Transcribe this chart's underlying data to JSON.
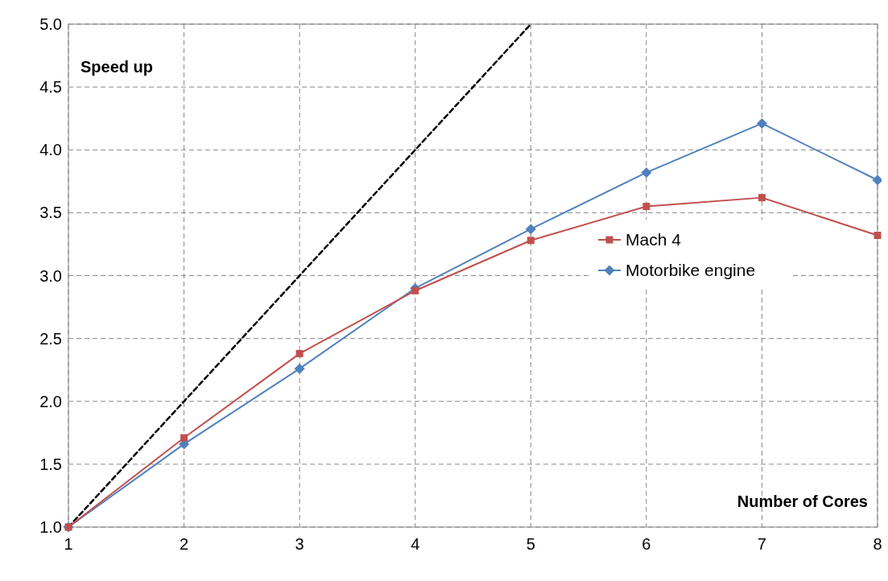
{
  "chart_data": {
    "type": "line",
    "xlabel": "Number of Cores",
    "ylabel": "Speed up",
    "x": [
      1,
      2,
      3,
      4,
      5,
      6,
      7,
      8
    ],
    "series": [
      {
        "name": "Mach 4",
        "color": "#c0504d",
        "marker": "square",
        "values": [
          1.0,
          1.71,
          2.38,
          2.88,
          3.28,
          3.55,
          3.62,
          3.32
        ]
      },
      {
        "name": "Motorbike engine",
        "color": "#4f81bd",
        "marker": "diamond",
        "values": [
          1.0,
          1.66,
          2.26,
          2.9,
          3.37,
          3.82,
          4.21,
          3.76
        ]
      },
      {
        "color": "#000000",
        "marker": "none",
        "line_style": "dashed",
        "x": [
          1,
          2,
          3,
          4,
          5
        ],
        "values": [
          1,
          2,
          3,
          4,
          5
        ]
      }
    ],
    "xlim": [
      1,
      8
    ],
    "xticks": [
      1,
      2,
      3,
      4,
      5,
      6,
      7,
      8
    ],
    "ylim": [
      1.0,
      5.0
    ],
    "yticks": [
      {
        "value": 1,
        "label": "1.0"
      },
      {
        "value": 1.5,
        "label": "1.5"
      },
      {
        "value": 2,
        "label": "2.0"
      },
      {
        "value": 2.5,
        "label": "2.5"
      },
      {
        "value": 3,
        "label": "3.0"
      },
      {
        "value": 3.5,
        "label": "3.5"
      },
      {
        "value": 4,
        "label": "4.0"
      },
      {
        "value": 4.5,
        "label": "4.5"
      },
      {
        "value": 5,
        "label": "5.0"
      }
    ],
    "grid": true,
    "legend": "right"
  }
}
